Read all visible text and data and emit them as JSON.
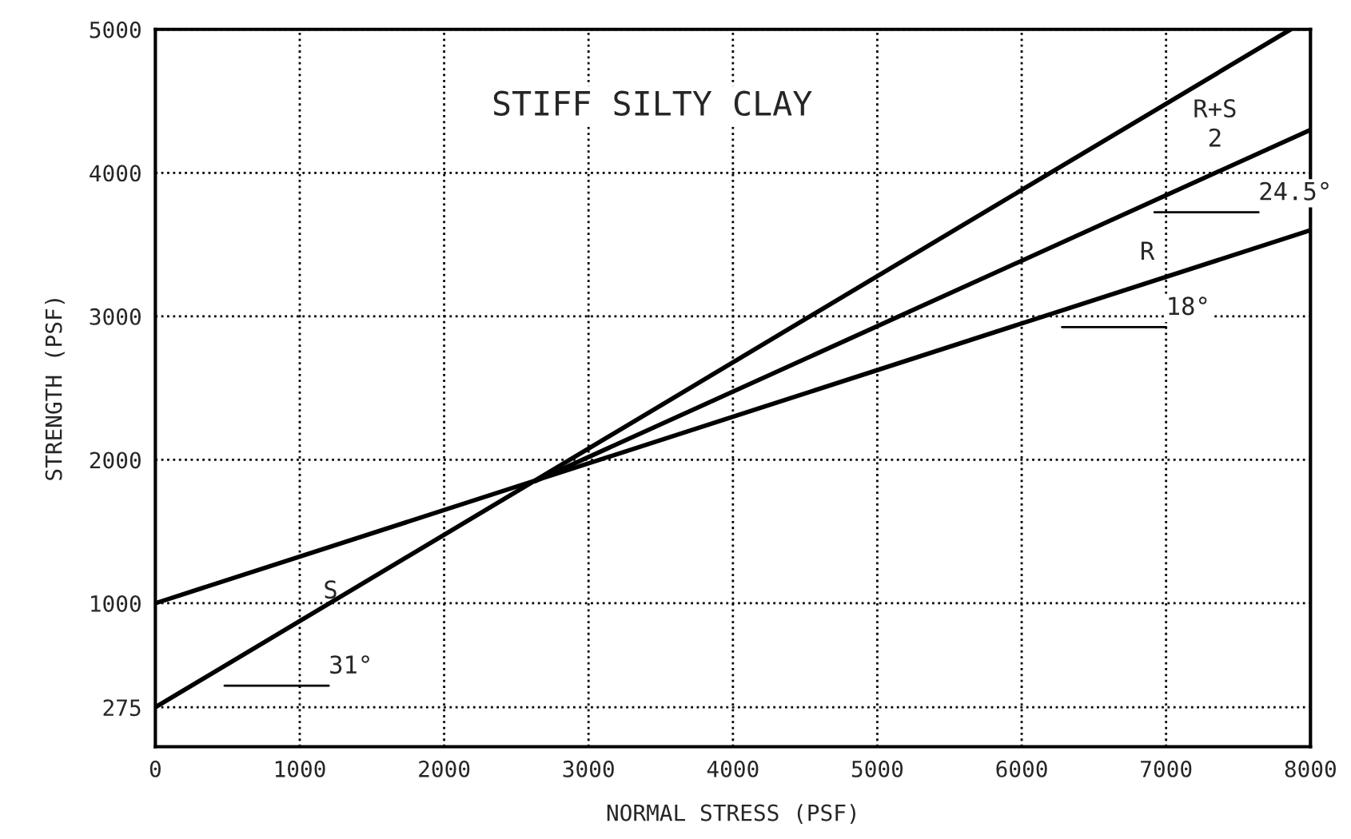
{
  "chart_data": {
    "type": "line",
    "title": "STIFF SILTY CLAY",
    "xlabel": "NORMAL STRESS (PSF)",
    "ylabel": "STRENGTH (PSF)",
    "xlim": [
      0,
      8000
    ],
    "ylim": [
      0,
      5000
    ],
    "xticks": [
      0,
      1000,
      2000,
      3000,
      4000,
      5000,
      6000,
      7000,
      8000
    ],
    "yticks": [
      275,
      1000,
      2000,
      3000,
      4000,
      5000
    ],
    "grid": true,
    "line_style": "solid",
    "series": [
      {
        "name": "S",
        "color": "#000000",
        "x": [
          0,
          7863
        ],
        "values": [
          275,
          5000
        ]
      },
      {
        "name": "R",
        "color": "#000000",
        "x": [
          0,
          8000
        ],
        "values": [
          1000,
          3600
        ]
      },
      {
        "name": "R+S\n2",
        "color": "#000000",
        "x": [
          2630,
          8000
        ],
        "values": [
          1850,
          4300
        ]
      }
    ],
    "annotations": [
      "31°",
      "18°",
      "24.5°"
    ]
  }
}
